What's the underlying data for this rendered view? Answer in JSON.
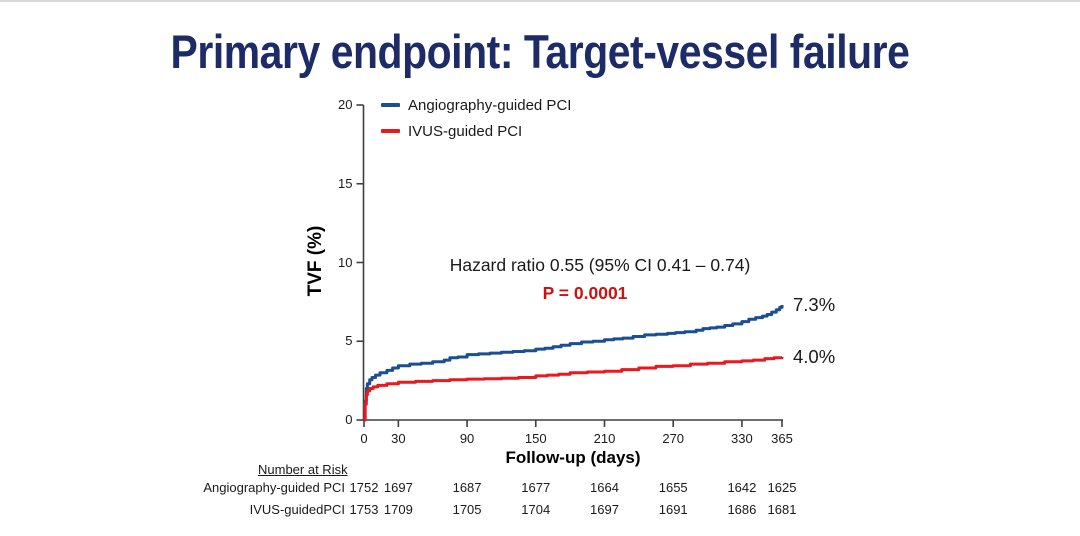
{
  "title": "Primary endpoint: Target-vessel failure",
  "colors": {
    "title_navy": "#1d2b66",
    "blue_series": "#1b4e92",
    "red_series": "#e8191f",
    "p_value_red": "#cc1111",
    "axis": "#3f3f3f"
  },
  "chart_data": {
    "type": "line",
    "subtype": "kaplan-meier-step",
    "xlabel": "Follow-up (days)",
    "ylabel": "TVF (%)",
    "xlim": [
      0,
      365
    ],
    "ylim": [
      0,
      20
    ],
    "x_ticks": [
      0,
      30,
      90,
      150,
      210,
      270,
      330,
      365
    ],
    "y_ticks": [
      0,
      5,
      10,
      15,
      20
    ],
    "grid": false,
    "legend_position": "top-left-inside",
    "annotations": {
      "hazard_ratio": "Hazard ratio 0.55 (95% CI 0.41 – 0.74)",
      "p_value": "P = 0.0001"
    },
    "series": [
      {
        "name": "Angiography-guided PCI",
        "color": "#1b4e92",
        "end_label": "7.3%",
        "final_value_pct": 7.3,
        "points": [
          [
            0,
            0
          ],
          [
            1,
            1.2
          ],
          [
            2,
            2.0
          ],
          [
            3,
            2.3
          ],
          [
            5,
            2.55
          ],
          [
            7,
            2.7
          ],
          [
            10,
            2.85
          ],
          [
            14,
            3.0
          ],
          [
            20,
            3.15
          ],
          [
            25,
            3.3
          ],
          [
            30,
            3.45
          ],
          [
            40,
            3.55
          ],
          [
            50,
            3.6
          ],
          [
            60,
            3.7
          ],
          [
            70,
            3.8
          ],
          [
            75,
            3.95
          ],
          [
            82,
            4.0
          ],
          [
            90,
            4.15
          ],
          [
            100,
            4.2
          ],
          [
            110,
            4.25
          ],
          [
            120,
            4.3
          ],
          [
            130,
            4.35
          ],
          [
            140,
            4.4
          ],
          [
            150,
            4.5
          ],
          [
            158,
            4.55
          ],
          [
            165,
            4.65
          ],
          [
            172,
            4.75
          ],
          [
            180,
            4.85
          ],
          [
            190,
            4.95
          ],
          [
            200,
            5.0
          ],
          [
            210,
            5.1
          ],
          [
            218,
            5.15
          ],
          [
            226,
            5.2
          ],
          [
            235,
            5.3
          ],
          [
            245,
            5.4
          ],
          [
            255,
            5.45
          ],
          [
            265,
            5.5
          ],
          [
            272,
            5.55
          ],
          [
            280,
            5.6
          ],
          [
            290,
            5.7
          ],
          [
            296,
            5.8
          ],
          [
            302,
            5.85
          ],
          [
            308,
            5.9
          ],
          [
            315,
            6.0
          ],
          [
            322,
            6.1
          ],
          [
            330,
            6.25
          ],
          [
            336,
            6.4
          ],
          [
            342,
            6.5
          ],
          [
            348,
            6.6
          ],
          [
            352,
            6.7
          ],
          [
            356,
            6.85
          ],
          [
            360,
            7.0
          ],
          [
            363,
            7.15
          ],
          [
            365,
            7.3
          ]
        ]
      },
      {
        "name": "IVUS-guided PCI",
        "color": "#e8191f",
        "end_label": "4.0%",
        "final_value_pct": 4.0,
        "points": [
          [
            0,
            0
          ],
          [
            1,
            1.0
          ],
          [
            2,
            1.6
          ],
          [
            3,
            1.85
          ],
          [
            5,
            2.0
          ],
          [
            8,
            2.1
          ],
          [
            12,
            2.2
          ],
          [
            20,
            2.3
          ],
          [
            30,
            2.4
          ],
          [
            45,
            2.45
          ],
          [
            60,
            2.5
          ],
          [
            75,
            2.55
          ],
          [
            90,
            2.6
          ],
          [
            105,
            2.62
          ],
          [
            120,
            2.65
          ],
          [
            135,
            2.7
          ],
          [
            150,
            2.8
          ],
          [
            160,
            2.85
          ],
          [
            170,
            2.9
          ],
          [
            180,
            3.0
          ],
          [
            195,
            3.05
          ],
          [
            210,
            3.1
          ],
          [
            225,
            3.2
          ],
          [
            240,
            3.3
          ],
          [
            255,
            3.4
          ],
          [
            270,
            3.45
          ],
          [
            285,
            3.55
          ],
          [
            300,
            3.6
          ],
          [
            315,
            3.7
          ],
          [
            330,
            3.75
          ],
          [
            340,
            3.8
          ],
          [
            350,
            3.9
          ],
          [
            358,
            3.95
          ],
          [
            365,
            4.0
          ]
        ]
      }
    ]
  },
  "risk_table": {
    "header": "Number at Risk",
    "rows": [
      {
        "label": "Angiography-guided PCI",
        "values": [
          "1752",
          "1697",
          "1687",
          "1677",
          "1664",
          "1655",
          "1642",
          "1625"
        ]
      },
      {
        "label": "IVUS-guidedPCI",
        "values": [
          "1753",
          "1709",
          "1705",
          "1704",
          "1697",
          "1691",
          "1686",
          "1681"
        ]
      }
    ]
  }
}
